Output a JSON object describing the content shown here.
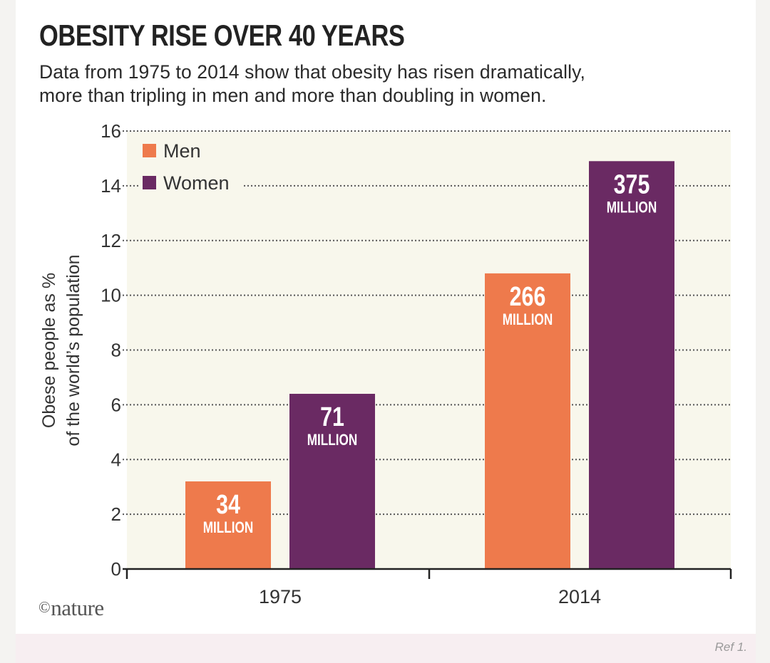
{
  "title": "OBESITY RISE OVER 40 YEARS",
  "subtitle_line1": "Data from 1975 to 2014 show that obesity has risen dramatically,",
  "subtitle_line2": "more than tripling in men and more than doubling in women.",
  "logo": {
    "symbol": "©",
    "text": "nature"
  },
  "reference": "Ref 1.",
  "colors": {
    "men": "#ee7a4c",
    "women": "#6a2a63",
    "plot_background": "#f8f7ec",
    "grid": "#555555",
    "label_text": "#ffffff"
  },
  "chart_data": {
    "type": "bar",
    "categories": [
      "1975",
      "2014"
    ],
    "series": [
      {
        "name": "Men",
        "values": [
          3.2,
          10.8
        ],
        "labels": [
          {
            "number": "34",
            "unit": "MILLION"
          },
          {
            "number": "266",
            "unit": "MILLION"
          }
        ]
      },
      {
        "name": "Women",
        "values": [
          6.4,
          14.9
        ],
        "labels": [
          {
            "number": "71",
            "unit": "MILLION"
          },
          {
            "number": "375",
            "unit": "MILLION"
          }
        ]
      }
    ],
    "ylabel_line1": "Obese people as %",
    "ylabel_line2": "of the world’s population",
    "xlabel": "",
    "ylim": [
      0,
      16
    ],
    "yticks": [
      0,
      2,
      4,
      6,
      8,
      10,
      12,
      14,
      16
    ],
    "grid": "dotted",
    "legend_position": "top-left"
  }
}
